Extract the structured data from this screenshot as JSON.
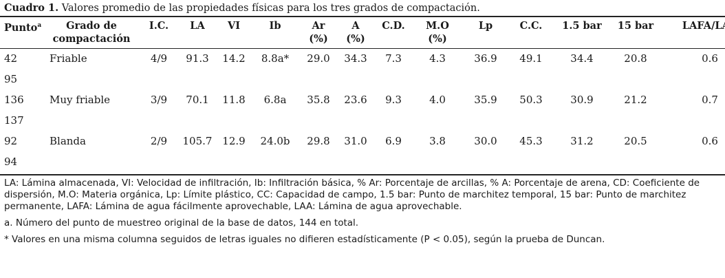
{
  "caption": {
    "label": "Cuadro 1.",
    "text": " Valores promedio de las propiedades físicas para los tres grados de compactación."
  },
  "table": {
    "headers": [
      {
        "line1": "Punto",
        "sup": "a",
        "line2": ""
      },
      {
        "line1": "Grado de",
        "sup": "",
        "line2": "compactación"
      },
      {
        "line1": "I.C.",
        "sup": "",
        "line2": ""
      },
      {
        "line1": "LA",
        "sup": "",
        "line2": ""
      },
      {
        "line1": "VI",
        "sup": "",
        "line2": ""
      },
      {
        "line1": "Ib",
        "sup": "",
        "line2": ""
      },
      {
        "line1": "Ar",
        "sup": "",
        "line2": "(%)"
      },
      {
        "line1": "A",
        "sup": "",
        "line2": "(%)"
      },
      {
        "line1": "C.D.",
        "sup": "",
        "line2": ""
      },
      {
        "line1": "M.O",
        "sup": "",
        "line2": "(%)"
      },
      {
        "line1": "Lp",
        "sup": "",
        "line2": ""
      },
      {
        "line1": "C.C.",
        "sup": "",
        "line2": ""
      },
      {
        "line1": "1.5 bar",
        "sup": "",
        "line2": ""
      },
      {
        "line1": "15 bar",
        "sup": "",
        "line2": ""
      },
      {
        "line1": "LAFA/LAA",
        "sup": "",
        "line2": ""
      }
    ],
    "rows": [
      [
        "42",
        "Friable",
        "4/9",
        "91.3",
        "14.2",
        "8.8a*",
        "29.0",
        "34.3",
        "7.3",
        "4.3",
        "36.9",
        "49.1",
        "34.4",
        "20.8",
        "0.6"
      ],
      [
        "95",
        "",
        "",
        "",
        "",
        "",
        "",
        "",
        "",
        "",
        "",
        "",
        "",
        "",
        ""
      ],
      [
        "136",
        "Muy friable",
        "3/9",
        "70.1",
        "11.8",
        "6.8a",
        "35.8",
        "23.6",
        "9.3",
        "4.0",
        "35.9",
        "50.3",
        "30.9",
        "21.2",
        "0.7"
      ],
      [
        "137",
        "",
        "",
        "",
        "",
        "",
        "",
        "",
        "",
        "",
        "",
        "",
        "",
        "",
        ""
      ],
      [
        "92",
        "Blanda",
        "2/9",
        "105.7",
        "12.9",
        "24.0b",
        "29.8",
        "31.0",
        "6.9",
        "3.8",
        "30.0",
        "45.3",
        "31.2",
        "20.5",
        "0.6"
      ],
      [
        "94",
        "",
        "",
        "",
        "",
        "",
        "",
        "",
        "",
        "",
        "",
        "",
        "",
        "",
        ""
      ]
    ]
  },
  "notes": {
    "abbreviations": "LA: Lámina almacenada, VI: Velocidad de infiltración, Ib: Infiltración básica, % Ar: Porcentaje de arcillas, % A: Porcentaje de arena, CD: Coeficiente de dispersión, M.O: Materia orgánica, Lp: Límite plástico, CC: Capacidad de campo, 1.5 bar: Punto de marchitez temporal, 15 bar: Punto de marchitez permanente, LAFA: Lámina de agua fácilmente aprovechable, LAA: Lámina de agua aprovechable.",
    "footnote_a": "a. Número del punto de muestreo original de la base de datos, 144 en total.",
    "footnote_star": "* Valores en una misma columna seguidos de letras iguales no difieren estadísticamente (P < 0.05), según la prueba de Duncan."
  }
}
